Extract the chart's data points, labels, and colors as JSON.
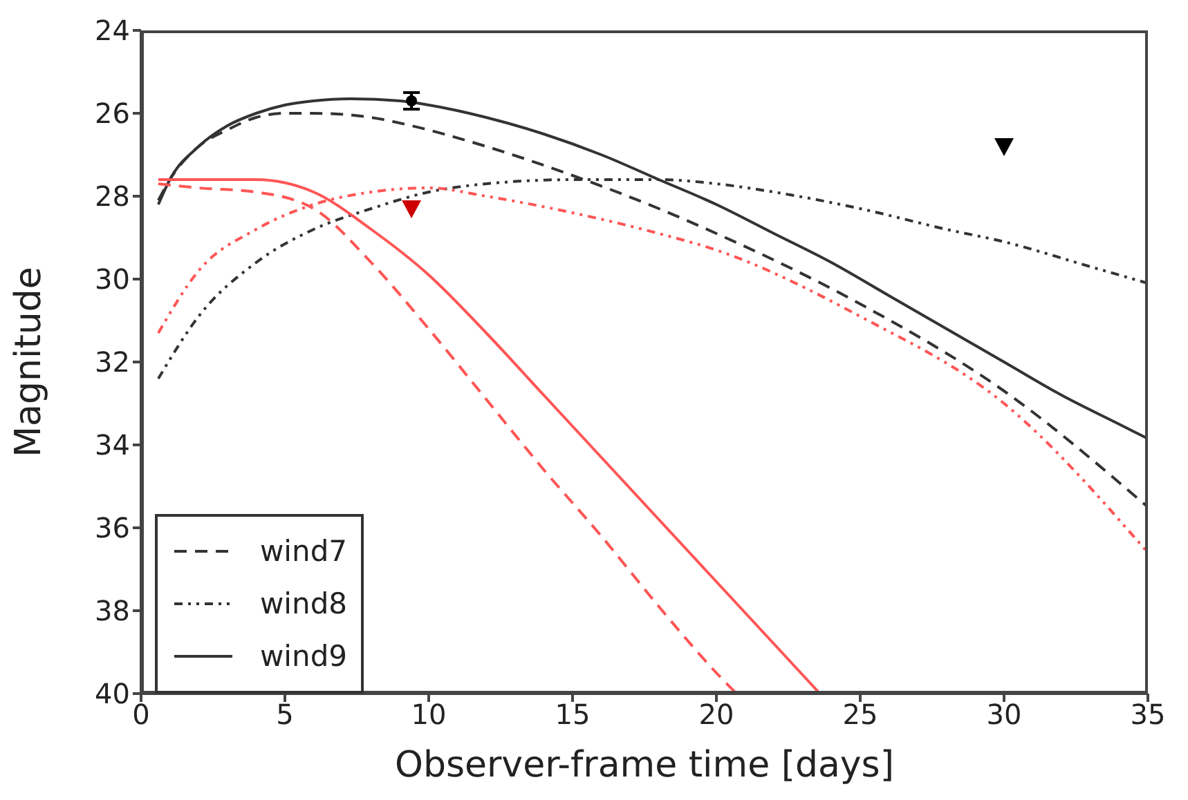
{
  "chart_data": {
    "type": "line",
    "xlabel": "Observer-frame time [days]",
    "ylabel": "Magnitude",
    "xlim": [
      0,
      35
    ],
    "xticks": [
      0,
      5,
      10,
      15,
      20,
      25,
      30,
      35
    ],
    "ylim": [
      40,
      24
    ],
    "yticks": [
      24,
      26,
      28,
      30,
      32,
      34,
      36,
      38,
      40
    ],
    "grid": false,
    "legend": "bottom left",
    "marker": "none",
    "series": [
      {
        "name": "wind7",
        "color": "#333333",
        "line_style": "dashed",
        "x": [
          0.6,
          1,
          2,
          3,
          4,
          5,
          6,
          8,
          9.4,
          12,
          15,
          18,
          20,
          25,
          30,
          35
        ],
        "values": [
          28.1,
          27.6,
          26.8,
          26.4,
          26.1,
          26.0,
          26.0,
          26.1,
          26.3,
          26.8,
          27.5,
          28.3,
          28.9,
          30.6,
          32.7,
          35.5
        ]
      },
      {
        "name": "wind8",
        "color": "#333333",
        "line_style": "dotted",
        "x": [
          0.6,
          2,
          4,
          6,
          8,
          10,
          12,
          15,
          18,
          20,
          22,
          25,
          28,
          30,
          33,
          35
        ],
        "values": [
          32.4,
          30.9,
          29.6,
          28.8,
          28.3,
          27.9,
          27.7,
          27.6,
          27.6,
          27.7,
          27.9,
          28.3,
          28.8,
          29.1,
          29.7,
          30.1
        ]
      },
      {
        "name": "wind9",
        "color": "#333333",
        "line_style": "solid",
        "x": [
          0.6,
          1,
          2,
          3,
          4,
          5,
          6,
          7.3,
          9,
          10,
          12,
          14,
          16,
          18,
          20,
          22,
          24,
          26,
          28,
          30,
          32,
          34,
          35
        ],
        "values": [
          28.2,
          27.6,
          26.8,
          26.3,
          26.0,
          25.8,
          25.7,
          25.65,
          25.7,
          25.8,
          26.1,
          26.5,
          27.0,
          27.6,
          28.2,
          28.9,
          29.6,
          30.4,
          31.2,
          32.0,
          32.8,
          33.5,
          33.85
        ]
      },
      {
        "color": "#ff5555",
        "line_style": "dashed",
        "x": [
          0.6,
          2,
          4,
          6,
          8,
          10,
          12,
          14,
          16,
          18,
          20,
          20.7
        ],
        "values": [
          27.7,
          27.8,
          27.9,
          28.3,
          29.6,
          31.2,
          32.9,
          34.6,
          36.2,
          37.9,
          39.5,
          40
        ]
      },
      {
        "color": "#ff5555",
        "line_style": "dotted",
        "x": [
          0.6,
          2,
          4,
          6,
          8,
          10,
          12,
          15,
          18,
          20,
          25,
          30,
          35
        ],
        "values": [
          31.3,
          29.8,
          28.8,
          28.2,
          27.9,
          27.8,
          28.0,
          28.4,
          28.9,
          29.3,
          30.9,
          33.0,
          36.6
        ]
      },
      {
        "color": "#ff5555",
        "line_style": "solid",
        "x": [
          0.6,
          2,
          4,
          6,
          8,
          10,
          12,
          14,
          16,
          18,
          20,
          22,
          23.6
        ],
        "values": [
          27.6,
          27.6,
          27.6,
          27.9,
          28.8,
          29.9,
          31.3,
          32.8,
          34.3,
          35.8,
          37.3,
          38.8,
          40
        ]
      },
      {
        "type": "scatter",
        "color": "#000000",
        "marker": "circle",
        "x": [
          9.4
        ],
        "values": [
          25.7
        ],
        "errors": [
          0.2
        ]
      },
      {
        "type": "scatter",
        "color": "#cc0000",
        "marker": "triangle",
        "x": [
          9.4
        ],
        "values": [
          28.3
        ]
      },
      {
        "type": "scatter",
        "color": "#000000",
        "marker": "triangle",
        "x": [
          30
        ],
        "values": [
          26.8
        ]
      }
    ]
  }
}
